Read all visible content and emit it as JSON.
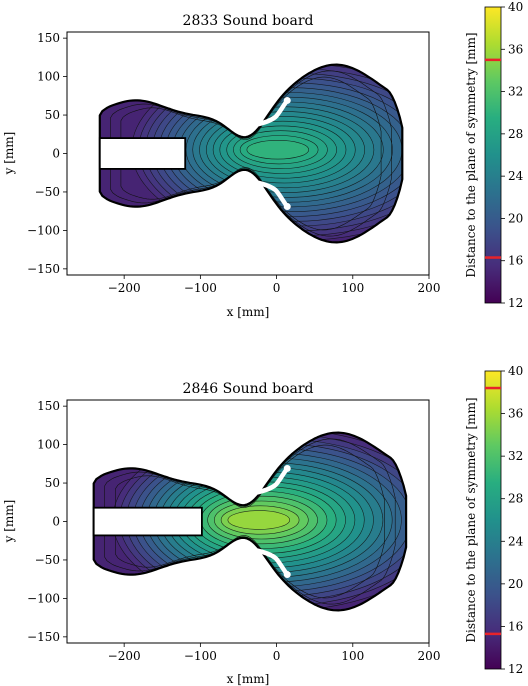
{
  "chart_data": [
    {
      "type": "heatmap",
      "title": "2833 Sound board",
      "xlabel": "x [mm]",
      "ylabel": "y [mm]",
      "xlim": [
        -275,
        200
      ],
      "ylim": [
        -158,
        158
      ],
      "x_ticks": [
        -200,
        -100,
        0,
        100,
        200
      ],
      "y_ticks": [
        -150,
        -100,
        -50,
        0,
        50,
        100,
        150
      ],
      "x_tick_labels": [
        "−200",
        "−100",
        "0",
        "100",
        "200"
      ],
      "y_tick_labels": [
        "−150",
        "−100",
        "−50",
        "0",
        "50",
        "100",
        "150"
      ],
      "colorbar": {
        "label": "Distance to the plane of symmetry [mm]",
        "range": [
          12,
          40
        ],
        "ticks": [
          12,
          16,
          20,
          24,
          28,
          32,
          36,
          40
        ],
        "tick_labels": [
          "12",
          "16",
          "20",
          "24",
          "28",
          "32",
          "36",
          "40"
        ],
        "markers": [
          35,
          16.3
        ],
        "marker_color": "#e8232a",
        "colormap": "viridis"
      },
      "peak": {
        "x": 0,
        "y": 5,
        "value": 30
      },
      "slot": {
        "x_range": [
          -232,
          -120
        ],
        "y_range": [
          -20,
          20
        ]
      },
      "outline_x_range": [
        -232,
        165
      ]
    },
    {
      "type": "heatmap",
      "title": "2846 Sound board",
      "xlabel": "x [mm]",
      "ylabel": "y [mm]",
      "xlim": [
        -275,
        200
      ],
      "ylim": [
        -158,
        158
      ],
      "x_ticks": [
        -200,
        -100,
        0,
        100,
        200
      ],
      "y_ticks": [
        -150,
        -100,
        -50,
        0,
        50,
        100,
        150
      ],
      "x_tick_labels": [
        "−200",
        "−100",
        "0",
        "100",
        "200"
      ],
      "y_tick_labels": [
        "−150",
        "−100",
        "−50",
        "0",
        "50",
        "100",
        "150"
      ],
      "colorbar": {
        "label": "Distance to the plane of symmetry [mm]",
        "range": [
          12,
          40
        ],
        "ticks": [
          12,
          16,
          20,
          24,
          28,
          32,
          36,
          40
        ],
        "tick_labels": [
          "12",
          "16",
          "20",
          "24",
          "28",
          "32",
          "36",
          "40"
        ],
        "markers": [
          38.4,
          15.3
        ],
        "marker_color": "#e8232a",
        "colormap": "viridis"
      },
      "peak": {
        "x": -25,
        "y": 2,
        "value": 35.5
      },
      "slot": {
        "x_range": [
          -240,
          -98
        ],
        "y_range": [
          -18,
          18
        ]
      },
      "outline_x_range": [
        -240,
        170
      ]
    }
  ]
}
